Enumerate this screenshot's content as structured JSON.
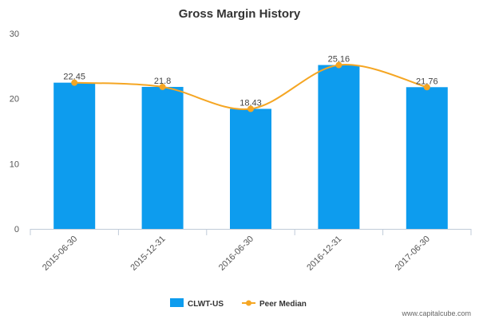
{
  "chart_data": {
    "type": "bar",
    "title": "Gross Margin History",
    "categories": [
      "2015-06-30",
      "2015-12-31",
      "2016-06-30",
      "2016-12-31",
      "2017-06-30"
    ],
    "series": [
      {
        "name": "CLWT-US",
        "type": "bar",
        "color": "#0d9cee",
        "values": [
          22.45,
          21.8,
          18.43,
          25.16,
          21.76
        ]
      },
      {
        "name": "Peer Median",
        "type": "line",
        "color": "#f5a623",
        "values": [
          22.45,
          21.8,
          18.43,
          25.16,
          21.76
        ]
      }
    ],
    "data_labels": [
      "22.45",
      "21.8",
      "18.43",
      "25.16",
      "21.76"
    ],
    "yticks": [
      0,
      10,
      20,
      30
    ],
    "ylim": [
      0,
      30
    ],
    "grid": false,
    "legend": "bottom-center"
  },
  "watermark": "www.capitalcube.com"
}
